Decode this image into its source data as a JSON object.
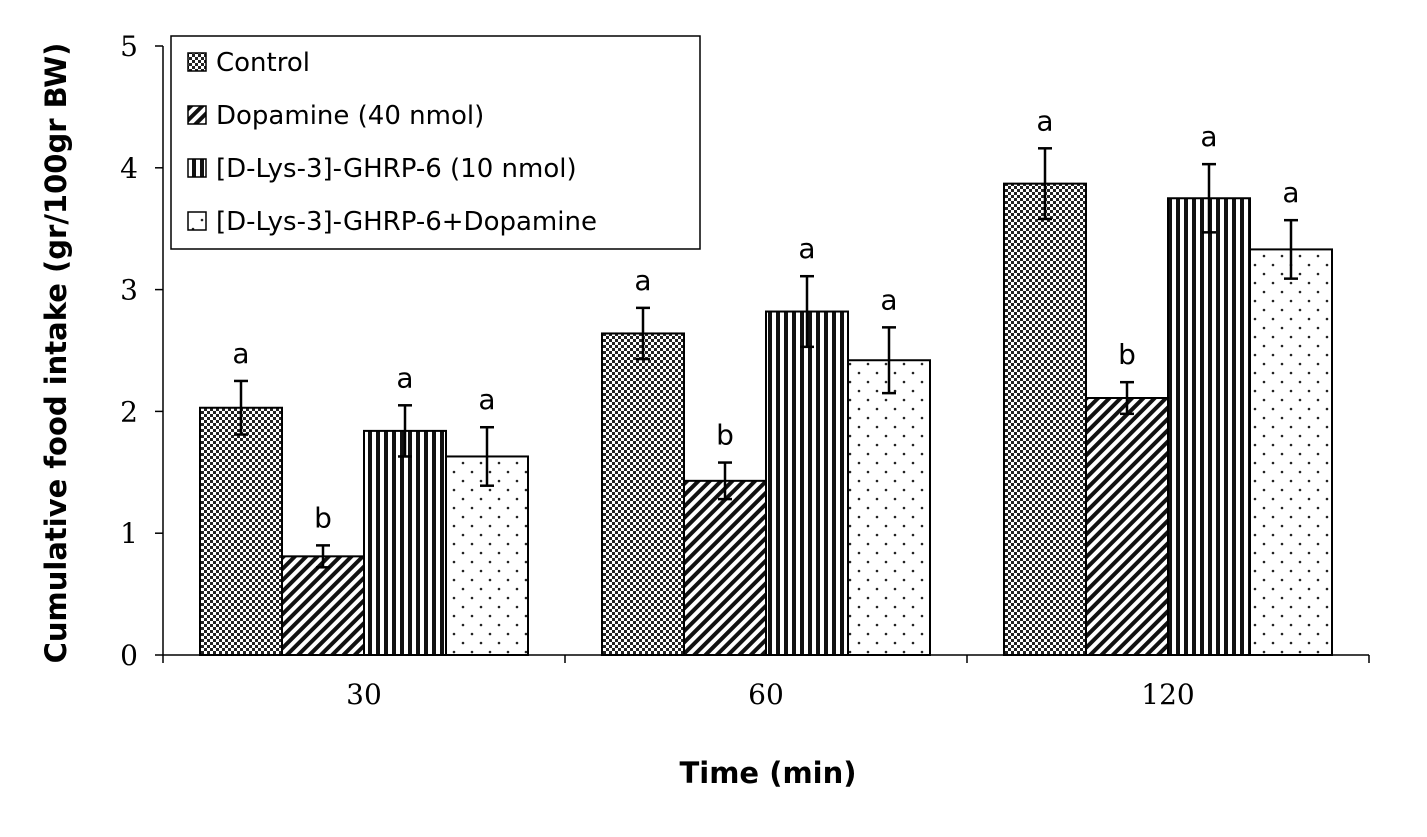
{
  "chart_data": {
    "type": "bar",
    "xlabel": "Time (min)",
    "ylabel": "Cumulative food intake (gr/100gr BW)",
    "ylim": [
      0,
      5
    ],
    "yticks": [
      0,
      1,
      2,
      3,
      4,
      5
    ],
    "categories": [
      "30",
      "60",
      "120"
    ],
    "grid": false,
    "legend_position": "top-left",
    "series": [
      {
        "name": "Control",
        "pattern": "checker",
        "values": [
          2.03,
          2.64,
          3.87
        ],
        "errors": [
          0.22,
          0.21,
          0.29
        ],
        "labels": [
          "a",
          "a",
          "a"
        ]
      },
      {
        "name": "Dopamine (40 nmol)",
        "pattern": "diagonal",
        "values": [
          0.81,
          1.43,
          2.11
        ],
        "errors": [
          0.09,
          0.15,
          0.13
        ],
        "labels": [
          "b",
          "b",
          "b"
        ]
      },
      {
        "name": "[D-Lys-3]-GHRP-6 (10 nmol)",
        "pattern": "vertical",
        "values": [
          1.84,
          2.82,
          3.75
        ],
        "errors": [
          0.21,
          0.29,
          0.28
        ],
        "labels": [
          "a",
          "a",
          "a"
        ]
      },
      {
        "name": "[D-Lys-3]-GHRP-6+Dopamine",
        "pattern": "dots",
        "values": [
          1.63,
          2.42,
          3.33
        ],
        "errors": [
          0.24,
          0.27,
          0.24
        ],
        "labels": [
          "a",
          "a",
          "a"
        ]
      }
    ]
  }
}
